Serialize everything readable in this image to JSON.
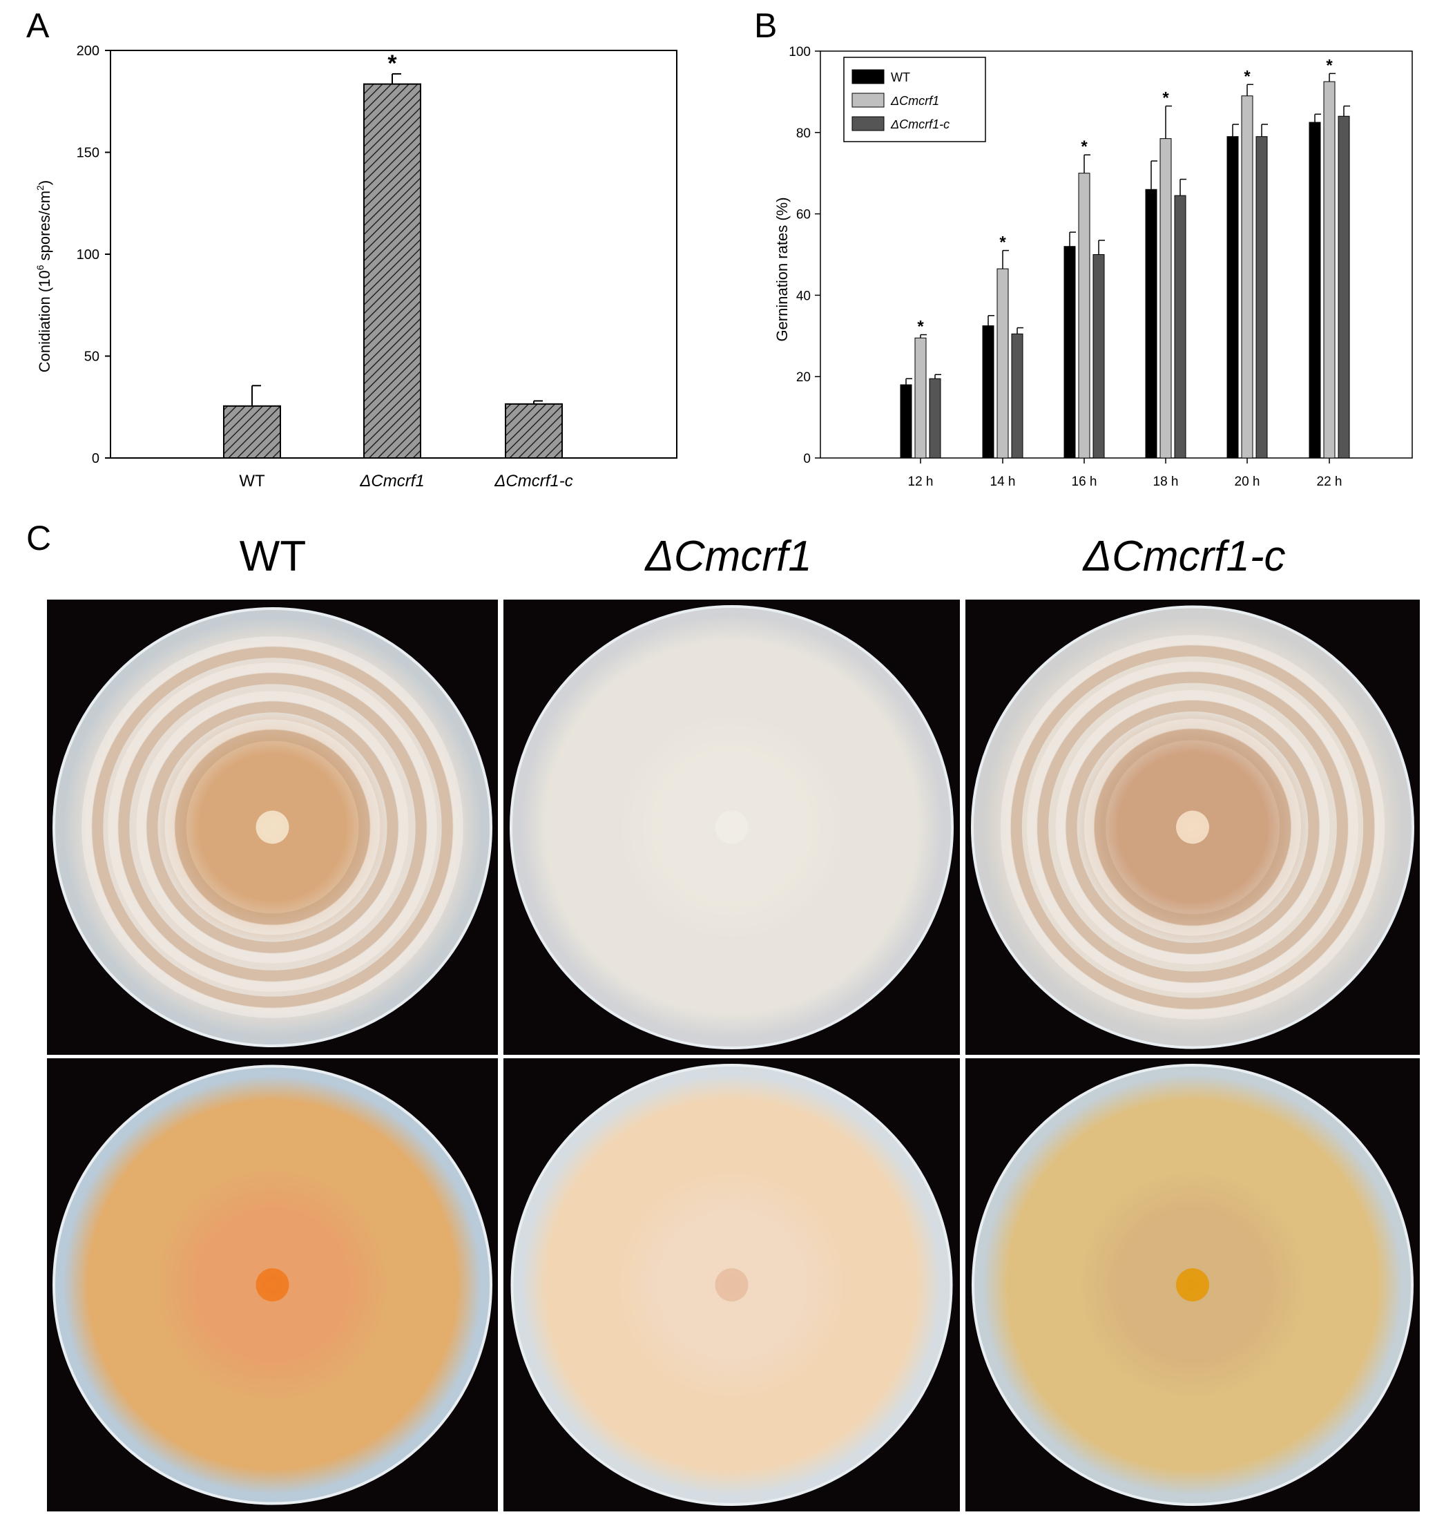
{
  "panels": {
    "a_letter": "A",
    "b_letter": "B",
    "c_letter": "C"
  },
  "chart_data": [
    {
      "type": "bar",
      "panel": "A",
      "ylabel_main": "Conidiation (10",
      "ylabel_exp": "6",
      "ylabel_mid": " spores/cm",
      "ylabel_sq": "2",
      "ylabel_end": ")",
      "categories": [
        "WT",
        "ΔCmcrf1",
        "ΔCmcrf1-c"
      ],
      "categories_italic": [
        false,
        true,
        true
      ],
      "values": [
        25.5,
        183.5,
        26.5
      ],
      "errors": [
        10,
        5,
        1.5
      ],
      "significance": [
        "",
        "*",
        ""
      ],
      "ylim": [
        0,
        200
      ],
      "yticks": [
        0,
        50,
        100,
        150,
        200
      ],
      "bar_fill": "hatched",
      "colors": {
        "bar": "#888888",
        "hatch": "#222222"
      }
    },
    {
      "type": "bar",
      "panel": "B",
      "ylabel": "Gernination rates (%)",
      "categories": [
        "12 h",
        "14 h",
        "16 h",
        "18 h",
        "20 h",
        "22 h"
      ],
      "ylim": [
        0,
        100
      ],
      "yticks": [
        0,
        20,
        40,
        60,
        80,
        100
      ],
      "legend_position": "top-left",
      "series": [
        {
          "name": "WT",
          "italic": false,
          "color": "#000000",
          "values": [
            18,
            32.5,
            52,
            66,
            79,
            82.5
          ],
          "errors": [
            1.5,
            2.5,
            3.5,
            7,
            3,
            2
          ]
        },
        {
          "name": "ΔCmcrf1",
          "italic": true,
          "color": "#bfbfbf",
          "values": [
            29.5,
            46.5,
            70,
            78.5,
            89,
            92.5
          ],
          "errors": [
            0.8,
            4.5,
            4.5,
            8,
            2.8,
            2
          ]
        },
        {
          "name": "ΔCmcrf1-c",
          "italic": true,
          "color": "#555555",
          "values": [
            19.5,
            30.5,
            50,
            64.5,
            79,
            84
          ],
          "errors": [
            1,
            1.5,
            3.5,
            4,
            3,
            2.5
          ]
        }
      ],
      "significance": [
        "*",
        "*",
        "*",
        "*",
        "*",
        "*"
      ]
    }
  ],
  "photos": {
    "titles": [
      "WT",
      "ΔCmcrf1",
      "ΔCmcrf1-c"
    ],
    "titles_italic": [
      false,
      true,
      true
    ],
    "cells": [
      {
        "id": "wt-top",
        "inner": "#d9a87a",
        "mid": "#e6ddd4",
        "edge": "#c6cdd2",
        "center": "#f2e0c6",
        "rings": true
      },
      {
        "id": "mut-top",
        "inner": "#ece8df",
        "mid": "#e8e4dc",
        "edge": "#d2d3d6",
        "center": "#f0ede6",
        "rings": false
      },
      {
        "id": "comp-top",
        "inner": "#cfa280",
        "mid": "#e6ddd3",
        "edge": "#cfd0cf",
        "center": "#f2dcc3",
        "rings": true
      },
      {
        "id": "wt-bottom",
        "inner": "#e9a06a",
        "mid": "#e3ad6c",
        "edge": "#b9cad8",
        "center": "#f07c24",
        "rings": false
      },
      {
        "id": "mut-bottom",
        "inner": "#f1d9c2",
        "mid": "#f2d6b3",
        "edge": "#d6dde2",
        "center": "#e8c0a2",
        "rings": false
      },
      {
        "id": "comp-bottom",
        "inner": "#d8b47e",
        "mid": "#e0c080",
        "edge": "#c4cfd6",
        "center": "#e49b10",
        "rings": false
      }
    ]
  }
}
